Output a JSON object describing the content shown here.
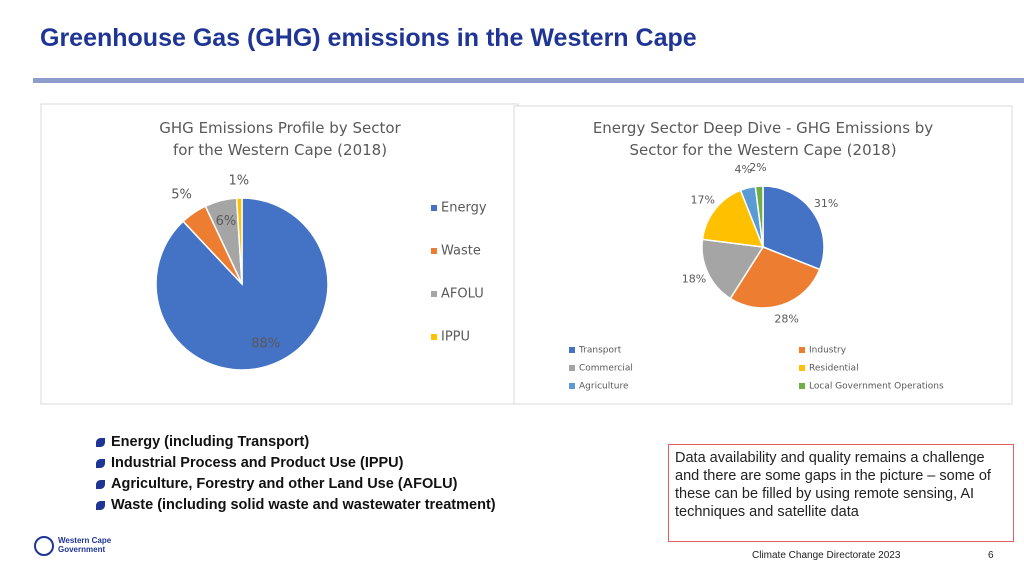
{
  "header": {
    "title": "Greenhouse Gas (GHG) emissions in the Western Cape"
  },
  "chart_data": [
    {
      "type": "pie",
      "title": "GHG Emissions Profile by Sector for the Western Cape (2018)",
      "categories": [
        "Energy",
        "Waste",
        "AFOLU",
        "IPPU"
      ],
      "values": [
        88,
        5,
        6,
        1
      ],
      "value_labels": [
        "88%",
        "5%",
        "6%",
        "1%"
      ],
      "colors": [
        "#4472c4",
        "#ed7d31",
        "#a5a5a5",
        "#ffc000"
      ],
      "legend": "right"
    },
    {
      "type": "pie",
      "title": "Energy Sector Deep Dive - GHG Emissions by Sector for the Western Cape (2018)",
      "categories": [
        "Transport",
        "Industry",
        "Commercial",
        "Residential",
        "Agriculture",
        "Local Government Operations"
      ],
      "values": [
        31,
        28,
        18,
        17,
        4,
        2
      ],
      "value_labels": [
        "31%",
        "28%",
        "18%",
        "17%",
        "4%",
        "2%"
      ],
      "colors": [
        "#4472c4",
        "#ed7d31",
        "#a5a5a5",
        "#ffc000",
        "#5b9bd5",
        "#70ad47"
      ],
      "legend": "bottom"
    }
  ],
  "bullets": [
    "Energy (including Transport)",
    "Industrial Process and Product Use (IPPU)",
    "Agriculture, Forestry and other Land Use (AFOLU)",
    "Waste (including solid waste and wastewater treatment)"
  ],
  "note": "Data availability and quality remains a challenge and there are some gaps in the picture – some of these can be filled by using remote sensing, AI techniques and satellite data",
  "footer": {
    "logo": [
      "Western Cape",
      "Government"
    ],
    "text": "Climate Change Directorate 2023",
    "page": "6"
  }
}
